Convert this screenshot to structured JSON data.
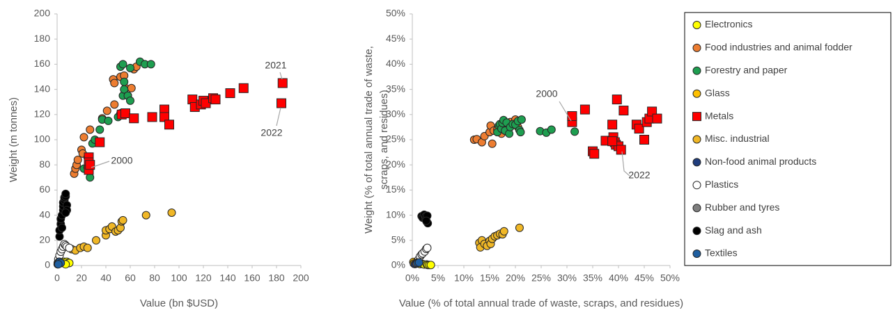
{
  "chart_data": [
    {
      "type": "scatter",
      "xlabel": "Value (bn $USD)",
      "ylabel": [
        "Weight (m tonnes)"
      ],
      "xlim": [
        0,
        200
      ],
      "ylim": [
        0,
        200
      ],
      "xticks": [
        0,
        20,
        40,
        60,
        80,
        100,
        120,
        140,
        160,
        180,
        200
      ],
      "yticks": [
        0,
        20,
        40,
        60,
        80,
        100,
        120,
        140,
        160,
        180,
        200
      ],
      "grid": false,
      "annotations": [
        "2000",
        "2021",
        "2022"
      ],
      "series": [
        {
          "name": "Electronics",
          "color": "#ffff00",
          "marker": "circle",
          "x": [
            2,
            4,
            6,
            8,
            9,
            10,
            7
          ],
          "values": [
            2,
            2,
            3,
            3,
            2,
            2,
            1
          ]
        },
        {
          "name": "Food industries and animal fodder",
          "color": "#ed7d31",
          "marker": "circle",
          "x": [
            14,
            15,
            16,
            17,
            20,
            21,
            22,
            25,
            27,
            37,
            41,
            47,
            46,
            47,
            52,
            55,
            56,
            58,
            61,
            63,
            65
          ],
          "values": [
            73,
            77,
            80,
            84,
            92,
            89,
            102,
            86,
            108,
            117,
            123,
            128,
            148,
            145,
            150,
            151,
            141,
            135,
            141,
            156,
            158
          ]
        },
        {
          "name": "Forestry and paper",
          "color": "#1e9e50",
          "marker": "circle",
          "x": [
            22,
            25,
            27,
            29,
            31,
            35,
            37,
            42,
            50,
            52,
            54,
            55,
            55,
            52,
            54,
            58,
            60,
            60,
            68,
            72,
            77
          ],
          "values": [
            77,
            78,
            70,
            97,
            100,
            108,
            116,
            115,
            118,
            121,
            135,
            140,
            146,
            158,
            160,
            135,
            131,
            157,
            162,
            160,
            160
          ]
        },
        {
          "name": "Glass",
          "color": "#ffc000",
          "marker": "circle",
          "x": [
            0.5,
            1,
            1
          ],
          "values": [
            1,
            1.5,
            2
          ]
        },
        {
          "name": "Metals",
          "color": "#ff0000",
          "marker": "square",
          "x": [
            26,
            26,
            26,
            27,
            35,
            53,
            56,
            63,
            78,
            88,
            88,
            92,
            111,
            113,
            118,
            120,
            122,
            128,
            130,
            142,
            153,
            185,
            184
          ],
          "values": [
            86,
            82,
            76,
            80,
            98,
            120,
            121,
            117,
            118,
            124,
            118,
            112,
            132,
            126,
            128,
            131,
            129,
            133,
            132,
            137,
            141,
            145,
            129
          ]
        },
        {
          "name": "Misc. industrial",
          "color": "#f0b726",
          "marker": "circle",
          "x": [
            12,
            15,
            19,
            22,
            25,
            32,
            40,
            40,
            43,
            45,
            48,
            50,
            52,
            53,
            54,
            73,
            94
          ],
          "values": [
            13,
            12,
            14,
            15,
            14,
            20,
            24,
            28,
            29,
            31,
            27,
            28,
            30,
            35,
            36,
            40,
            42
          ]
        },
        {
          "name": "Non-food animal products",
          "color": "#203d7c",
          "marker": "circle",
          "x": [
            0.5,
            1
          ],
          "values": [
            1,
            2
          ]
        },
        {
          "name": "Plastics",
          "color": "#ffffff",
          "marker": "circle",
          "x": [
            0.5,
            1,
            2,
            3,
            4,
            5,
            6,
            7,
            8,
            10
          ],
          "values": [
            2,
            5,
            8,
            11,
            13,
            15,
            17,
            16,
            15,
            14
          ]
        },
        {
          "name": "Rubber and tyres",
          "color": "#7f7f7f",
          "marker": "circle",
          "x": [
            1,
            1.5
          ],
          "values": [
            2,
            3
          ]
        },
        {
          "name": "Slag and ash",
          "color": "#000000",
          "marker": "circle",
          "x": [
            2,
            2,
            3,
            3,
            4,
            5,
            5,
            5,
            6,
            6,
            7,
            7,
            8,
            8,
            7,
            4
          ],
          "values": [
            23,
            28,
            33,
            37,
            40,
            44,
            47,
            50,
            52,
            54,
            55,
            57,
            48,
            44,
            42,
            30
          ]
        },
        {
          "name": "Textiles",
          "color": "#1f5fa0",
          "marker": "circle",
          "x": [
            2,
            3,
            1
          ],
          "values": [
            3,
            2,
            1
          ]
        }
      ]
    },
    {
      "type": "scatter",
      "xlabel": "Value (% of total annual trade of waste, scraps, and residues)",
      "ylabel": [
        "Weight (% of total annual trade of waste,",
        "scraps, and residues)"
      ],
      "xlim": [
        0,
        50
      ],
      "ylim": [
        0,
        50
      ],
      "xticks": [
        {
          "value": 0,
          "label": "0%"
        },
        {
          "value": 5,
          "label": "5%"
        },
        {
          "value": 10,
          "label": "10%"
        },
        {
          "value": 15,
          "label": "15%"
        },
        {
          "value": 20,
          "label": "20%"
        },
        {
          "value": 25,
          "label": "25%"
        },
        {
          "value": 30,
          "label": "30%"
        },
        {
          "value": 35,
          "label": "35%"
        },
        {
          "value": 40,
          "label": "40%"
        },
        {
          "value": 45,
          "label": "45%"
        },
        {
          "value": 50,
          "label": "50%"
        }
      ],
      "yticks": [
        {
          "value": 0,
          "label": "0%"
        },
        {
          "value": 5,
          "label": "5%"
        },
        {
          "value": 10,
          "label": "10%"
        },
        {
          "value": 15,
          "label": "15%"
        },
        {
          "value": 20,
          "label": "20%"
        },
        {
          "value": 25,
          "label": "25%"
        },
        {
          "value": 30,
          "label": "30%"
        },
        {
          "value": 35,
          "label": "35%"
        },
        {
          "value": 40,
          "label": "40%"
        },
        {
          "value": 45,
          "label": "45%"
        },
        {
          "value": 50,
          "label": "50%"
        }
      ],
      "grid": false,
      "legend": "right",
      "annotations": [
        "2000",
        "2022"
      ],
      "series": [
        {
          "name": "Electronics",
          "color": "#ffff00",
          "marker": "circle",
          "x": [
            1.5,
            2,
            2.3,
            2.8,
            3,
            3.3,
            3.6
          ],
          "values": [
            0.3,
            0.3,
            0.2,
            0.2,
            0.1,
            0.1,
            0.1
          ]
        },
        {
          "name": "Food industries and animal fodder",
          "color": "#ed7d31",
          "marker": "circle",
          "x": [
            12,
            12.5,
            13.5,
            14,
            15,
            15.2,
            15.5,
            15.8,
            16.5,
            17,
            17.3,
            18,
            18.5,
            19,
            20,
            20.5
          ],
          "values": [
            25,
            25.1,
            24.5,
            25.7,
            26.5,
            27.8,
            24.2,
            26.8,
            27,
            27.5,
            26.2,
            27,
            27.7,
            28.5,
            29,
            27.5
          ]
        },
        {
          "name": "Forestry and paper",
          "color": "#1e9e50",
          "marker": "circle",
          "x": [
            16.5,
            16.8,
            17,
            17.3,
            17.5,
            17.7,
            18,
            18.3,
            18.8,
            19,
            19.5,
            20,
            20.5,
            20.8,
            21,
            21.2,
            24.8,
            26,
            27,
            31.5
          ],
          "values": [
            26.5,
            27.8,
            28.1,
            27.2,
            28.3,
            28.9,
            26.8,
            28.4,
            26.2,
            27.5,
            28.1,
            28,
            28.7,
            26.9,
            26.5,
            29,
            26.7,
            26.4,
            27,
            26.6
          ]
        },
        {
          "name": "Glass",
          "color": "#ffc000",
          "marker": "circle",
          "x": [
            0.2,
            0.3
          ],
          "values": [
            0.7,
            0.4
          ]
        },
        {
          "name": "Metals",
          "color": "#ff0000",
          "marker": "square",
          "x": [
            31,
            31,
            33.5,
            35,
            35.3,
            37.5,
            38.8,
            39,
            39.3,
            39.5,
            39.7,
            40,
            40.5,
            41,
            43.5,
            44,
            45,
            45.5,
            46,
            46.5,
            47.5,
            38.8
          ],
          "values": [
            28.5,
            29.7,
            31,
            22.7,
            22.2,
            24.8,
            28,
            25.5,
            24.5,
            24,
            33,
            23.7,
            23,
            30.8,
            28,
            27.2,
            25,
            28.5,
            29.2,
            30.6,
            29.2,
            24.7
          ]
        },
        {
          "name": "Misc. industrial",
          "color": "#f0b726",
          "marker": "circle",
          "x": [
            13,
            13.2,
            13.5,
            14,
            14.5,
            15,
            15.2,
            15.5,
            16,
            16.5,
            17,
            17.5,
            17.8,
            20.8
          ],
          "values": [
            4.5,
            3.6,
            5,
            4.3,
            3.9,
            4.9,
            4.3,
            5.3,
            5.8,
            6,
            6.3,
            6.2,
            6.8,
            7.5
          ]
        },
        {
          "name": "Non-food animal products",
          "color": "#203d7c",
          "marker": "circle",
          "x": [
            0.5,
            0.8
          ],
          "values": [
            0.3,
            0.4
          ]
        },
        {
          "name": "Plastics",
          "color": "#ffffff",
          "marker": "circle",
          "x": [
            1,
            1.2,
            1.5,
            1.8,
            2,
            2.4,
            2.7,
            2.9
          ],
          "values": [
            0.8,
            1.2,
            1.8,
            2.2,
            2.4,
            2.8,
            3.3,
            3.5
          ]
        },
        {
          "name": "Rubber and tyres",
          "color": "#7f7f7f",
          "marker": "circle",
          "x": [
            0.8,
            1
          ],
          "values": [
            0.4,
            0.6
          ]
        },
        {
          "name": "Slag and ash",
          "color": "#000000",
          "marker": "circle",
          "x": [
            1.8,
            2,
            2.3,
            2.5,
            2.6,
            2.8,
            3,
            2.9,
            2.7
          ],
          "values": [
            9.8,
            9.5,
            10.1,
            9.3,
            9.8,
            8.7,
            8.4,
            9.9,
            8.9
          ]
        },
        {
          "name": "Textiles",
          "color": "#1f5fa0",
          "marker": "circle",
          "x": [
            1,
            1.3
          ],
          "values": [
            0.5,
            0.6
          ]
        }
      ]
    }
  ]
}
